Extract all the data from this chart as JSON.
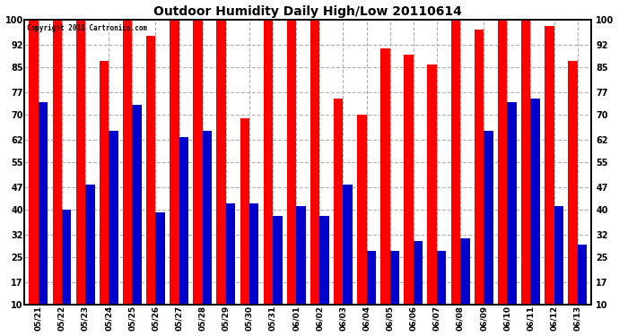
{
  "title": "Outdoor Humidity Daily High/Low 20110614",
  "copyright": "Copyright 2011 Cartronics.com",
  "categories": [
    "05/21",
    "05/22",
    "05/23",
    "05/24",
    "05/25",
    "05/26",
    "05/27",
    "05/28",
    "05/29",
    "05/30",
    "05/31",
    "06/01",
    "06/02",
    "06/03",
    "06/04",
    "06/05",
    "06/06",
    "06/07",
    "06/08",
    "06/09",
    "06/10",
    "06/11",
    "06/12",
    "06/13"
  ],
  "high": [
    100,
    100,
    100,
    87,
    100,
    95,
    100,
    100,
    100,
    69,
    100,
    100,
    100,
    75,
    70,
    91,
    89,
    86,
    100,
    97,
    100,
    100,
    98,
    87
  ],
  "low": [
    74,
    40,
    48,
    65,
    73,
    39,
    63,
    65,
    42,
    42,
    38,
    41,
    38,
    48,
    27,
    27,
    30,
    27,
    31,
    65,
    74,
    75,
    41,
    29
  ],
  "high_color": "#ff0000",
  "low_color": "#0000cc",
  "bg_color": "#ffffff",
  "grid_color": "#b0b0b0",
  "ylim": [
    10,
    100
  ],
  "yticks": [
    10,
    17,
    25,
    32,
    40,
    47,
    55,
    62,
    70,
    77,
    85,
    92,
    100
  ],
  "fig_width": 6.9,
  "fig_height": 3.75,
  "dpi": 100
}
